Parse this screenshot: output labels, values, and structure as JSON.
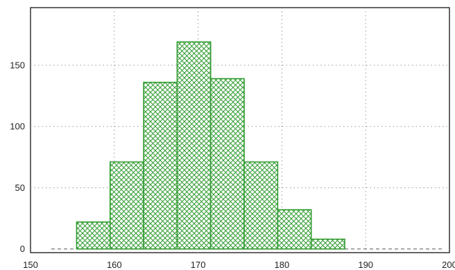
{
  "chart_data": {
    "type": "bar",
    "title": "",
    "xlabel": "",
    "ylabel": "",
    "x_ticks": [
      150,
      160,
      170,
      180,
      190,
      200
    ],
    "y_ticks": [
      0,
      50,
      100,
      150
    ],
    "xlim": [
      150,
      200
    ],
    "ylim": [
      -3,
      197
    ],
    "grid": true,
    "legend": "none",
    "bin_width": 4,
    "bins": [
      {
        "start": 155.5,
        "end": 159.5,
        "value": 22
      },
      {
        "start": 159.5,
        "end": 163.5,
        "value": 71
      },
      {
        "start": 163.5,
        "end": 167.5,
        "value": 136
      },
      {
        "start": 167.5,
        "end": 171.5,
        "value": 169
      },
      {
        "start": 171.5,
        "end": 175.5,
        "value": 139
      },
      {
        "start": 175.5,
        "end": 179.5,
        "value": 71
      },
      {
        "start": 179.5,
        "end": 183.5,
        "value": 32
      },
      {
        "start": 183.5,
        "end": 187.5,
        "value": 8
      }
    ],
    "baseline": 0,
    "colors": {
      "bar_stroke": "#2e9a2e",
      "hatch": "#2e9a2e",
      "grid": "#9a9a9a",
      "frame": "#000000"
    }
  }
}
